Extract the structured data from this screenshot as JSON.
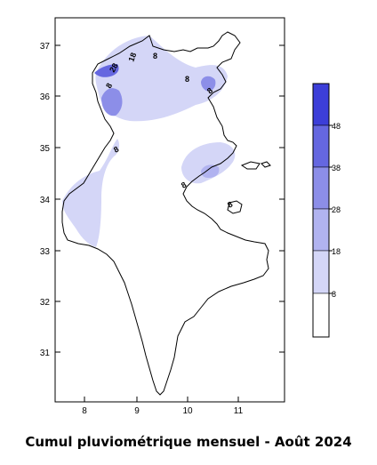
{
  "caption": "Cumul  pluviométrique mensuel - Août 2024",
  "axes": {
    "x_ticks": [
      "8",
      "9",
      "10",
      "11"
    ],
    "y_ticks": [
      "37",
      "36",
      "35",
      "34",
      "33",
      "32",
      "31"
    ]
  },
  "legend": {
    "bins": [
      {
        "label": "8",
        "color": "#ffffff"
      },
      {
        "label": "18",
        "color": "#d4d6f7"
      },
      {
        "label": "28",
        "color": "#b1b3f0"
      },
      {
        "label": "38",
        "color": "#8c8ee8"
      },
      {
        "label": "48",
        "color": "#6567e0"
      },
      {
        "label": "",
        "color": "#3c3ed8"
      }
    ]
  },
  "contour_labels": [
    "18",
    "8",
    "8",
    "28",
    "8",
    "8",
    "8",
    "8",
    "8"
  ],
  "colors": {
    "region_outline": "#000000",
    "frame": "#000000"
  }
}
